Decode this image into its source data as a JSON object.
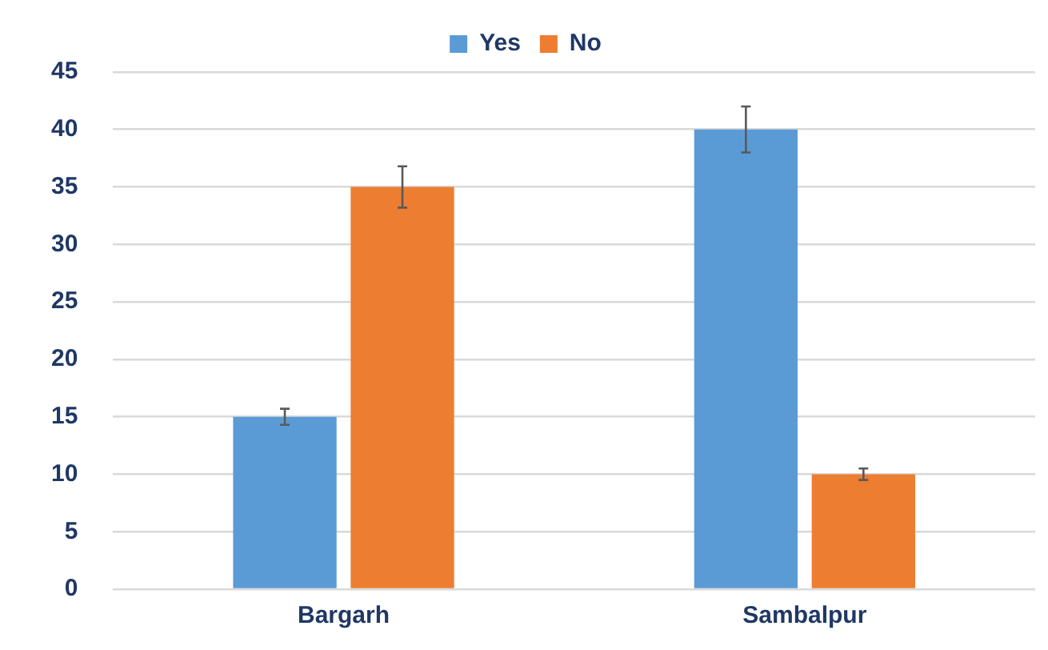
{
  "chart_data": {
    "type": "bar",
    "categories": [
      "Bargarh",
      "Sambalpur"
    ],
    "series": [
      {
        "name": "Yes",
        "color": "#5b9bd5",
        "values": [
          15,
          40
        ],
        "errors": [
          0.7,
          2
        ]
      },
      {
        "name": "No",
        "color": "#ed7d31",
        "values": [
          35,
          10
        ],
        "errors": [
          1.8,
          0.5
        ]
      }
    ],
    "ylim": [
      0,
      45
    ],
    "yticks": [
      0,
      5,
      10,
      15,
      20,
      25,
      30,
      35,
      40,
      45
    ],
    "grid": "y",
    "legend": "top"
  }
}
